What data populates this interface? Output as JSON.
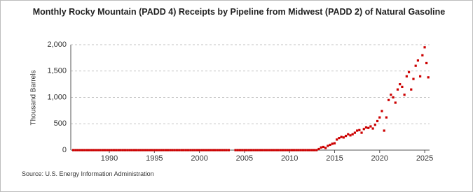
{
  "chart_data": {
    "type": "scatter",
    "title": "Monthly Rocky Mountain (PADD 4) Receipts by Pipeline from Midwest (PADD 2) of Natural Gasoline",
    "y_label": "Thousand Barrels",
    "source": "Source: U.S. Energy Information Administration",
    "color": "#cc0000",
    "grid": true,
    "xlim": [
      1985.72,
      2025.54
    ],
    "ylim": [
      0,
      2000
    ],
    "xticks": [
      1990,
      1995,
      2000,
      2005,
      2010,
      2015,
      2020,
      2025
    ],
    "yticks": [
      0,
      500,
      {
        "value": 1000,
        "label": "1,000"
      },
      {
        "value": 1500,
        "label": "1,500"
      },
      {
        "value": 2000,
        "label": "2,000"
      }
    ],
    "x": [
      1986,
      1986.25,
      1986.5,
      1986.75,
      1987,
      1987.25,
      1987.5,
      1987.75,
      1988,
      1988.25,
      1988.5,
      1988.75,
      1989,
      1989.25,
      1989.5,
      1989.75,
      1990,
      1990.25,
      1990.5,
      1990.75,
      1991,
      1991.25,
      1991.5,
      1991.75,
      1992,
      1992.25,
      1992.5,
      1992.75,
      1993,
      1993.25,
      1993.5,
      1993.75,
      1994,
      1994.25,
      1994.5,
      1994.75,
      1995,
      1995.25,
      1995.5,
      1995.75,
      1996,
      1996.25,
      1996.5,
      1996.75,
      1997,
      1997.25,
      1997.5,
      1997.75,
      1998,
      1998.25,
      1998.5,
      1998.75,
      1999,
      1999.25,
      1999.5,
      1999.75,
      2000,
      2000.25,
      2000.5,
      2000.75,
      2001,
      2001.25,
      2001.5,
      2001.75,
      2002,
      2002.25,
      2002.5,
      2002.75,
      2003,
      2003.25,
      2004,
      2004.25,
      2004.5,
      2004.75,
      2005,
      2005.25,
      2005.5,
      2005.75,
      2006,
      2006.25,
      2006.5,
      2006.75,
      2007,
      2007.25,
      2007.5,
      2007.75,
      2008,
      2008.25,
      2008.5,
      2008.75,
      2009,
      2009.25,
      2009.5,
      2009.75,
      2010,
      2010.25,
      2010.5,
      2010.75,
      2011,
      2011.25,
      2011.5,
      2011.75,
      2012,
      2012.25,
      2012.5,
      2012.75,
      2013,
      2013.25,
      2013.5,
      2013.75,
      2014,
      2014.25,
      2014.5,
      2014.75,
      2015,
      2015.25,
      2015.5,
      2015.75,
      2016,
      2016.25,
      2016.5,
      2016.75,
      2017,
      2017.25,
      2017.5,
      2017.75,
      2018,
      2018.25,
      2018.5,
      2018.75,
      2019,
      2019.25,
      2019.5,
      2019.75,
      2020,
      2020.25,
      2020.5,
      2020.75,
      2021,
      2021.25,
      2021.5,
      2021.75,
      2022,
      2022.25,
      2022.5,
      2022.75,
      2023,
      2023.25,
      2023.5,
      2023.75,
      2024,
      2024.25,
      2024.5,
      2024.75,
      2025,
      2025.2,
      2025.4
    ],
    "values": [
      0,
      0,
      0,
      0,
      0,
      0,
      0,
      0,
      0,
      0,
      0,
      0,
      0,
      0,
      0,
      0,
      0,
      0,
      0,
      0,
      0,
      0,
      0,
      0,
      0,
      0,
      0,
      0,
      0,
      0,
      0,
      0,
      0,
      0,
      0,
      0,
      0,
      0,
      0,
      0,
      0,
      0,
      0,
      0,
      0,
      0,
      0,
      0,
      0,
      0,
      0,
      0,
      0,
      0,
      0,
      0,
      0,
      0,
      0,
      0,
      0,
      0,
      0,
      0,
      0,
      0,
      0,
      0,
      0,
      0,
      0,
      0,
      0,
      0,
      0,
      0,
      0,
      0,
      0,
      0,
      0,
      0,
      0,
      0,
      0,
      0,
      0,
      0,
      0,
      0,
      0,
      0,
      0,
      0,
      0,
      0,
      0,
      0,
      0,
      0,
      0,
      0,
      0,
      0,
      0,
      0,
      0,
      20,
      50,
      60,
      40,
      80,
      100,
      120,
      130,
      200,
      230,
      250,
      240,
      270,
      300,
      280,
      300,
      330,
      370,
      380,
      330,
      400,
      430,
      420,
      450,
      410,
      480,
      550,
      620,
      740,
      370,
      620,
      950,
      1050,
      1000,
      900,
      1150,
      1250,
      1200,
      1050,
      1400,
      1480,
      1150,
      1350,
      1600,
      1700,
      1400,
      1800,
      1950,
      1650,
      1380
    ]
  }
}
